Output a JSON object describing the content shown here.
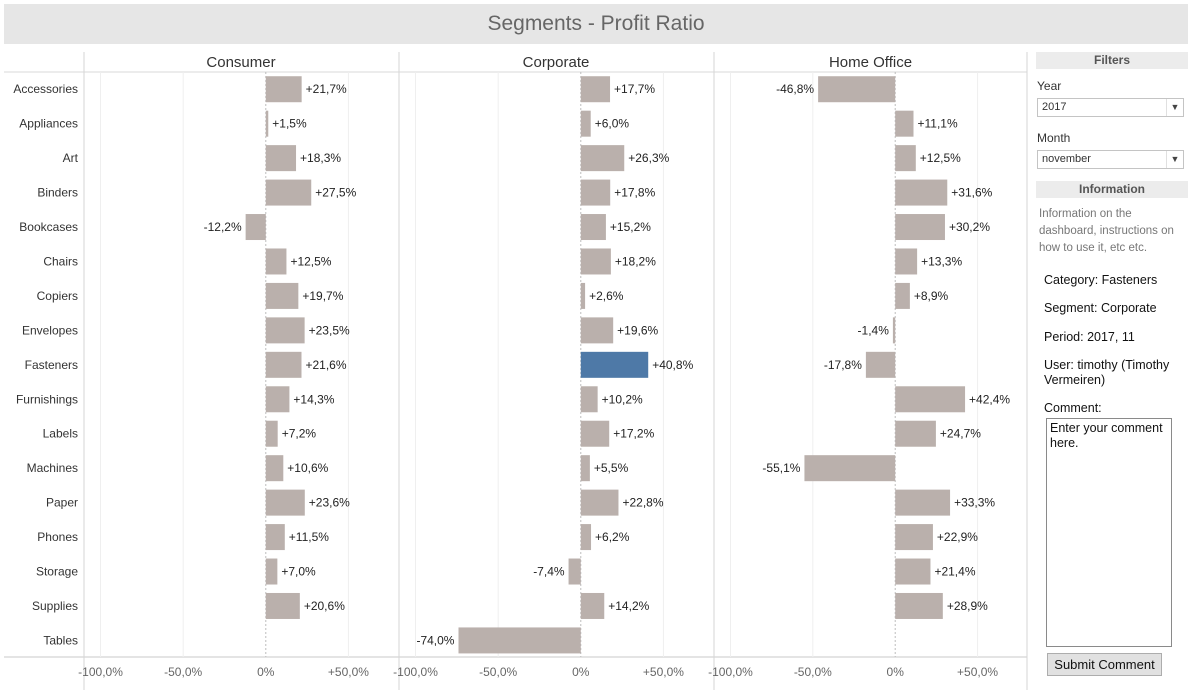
{
  "title": "Segments - Profit Ratio",
  "colors": {
    "bar": "#bab0ac",
    "highlight": "#4e79a7"
  },
  "chart_data": {
    "type": "bar",
    "orientation": "horizontal",
    "categories": [
      "Accessories",
      "Appliances",
      "Art",
      "Binders",
      "Bookcases",
      "Chairs",
      "Copiers",
      "Envelopes",
      "Fasteners",
      "Furnishings",
      "Labels",
      "Machines",
      "Paper",
      "Phones",
      "Storage",
      "Supplies",
      "Tables"
    ],
    "series": [
      {
        "name": "Consumer",
        "values": [
          21.7,
          1.5,
          18.3,
          27.5,
          -12.2,
          12.5,
          19.7,
          23.5,
          21.6,
          14.3,
          7.2,
          10.6,
          23.6,
          11.5,
          7.0,
          20.6,
          null
        ],
        "labels": [
          "+21,7%",
          "+1,5%",
          "+18,3%",
          "+27,5%",
          "-12,2%",
          "+12,5%",
          "+19,7%",
          "+23,5%",
          "+21,6%",
          "+14,3%",
          "+7,2%",
          "+10,6%",
          "+23,6%",
          "+11,5%",
          "+7,0%",
          "+20,6%",
          ""
        ]
      },
      {
        "name": "Corporate",
        "values": [
          17.7,
          6.0,
          26.3,
          17.8,
          15.2,
          18.2,
          2.6,
          19.6,
          40.8,
          10.2,
          17.2,
          5.5,
          22.8,
          6.2,
          -7.4,
          14.2,
          -74.0
        ],
        "labels": [
          "+17,7%",
          "+6,0%",
          "+26,3%",
          "+17,8%",
          "+15,2%",
          "+18,2%",
          "+2,6%",
          "+19,6%",
          "+40,8%",
          "+10,2%",
          "+17,2%",
          "+5,5%",
          "+22,8%",
          "+6,2%",
          "-7,4%",
          "+14,2%",
          "-74,0%"
        ]
      },
      {
        "name": "Home Office",
        "values": [
          -46.8,
          11.1,
          12.5,
          31.6,
          30.2,
          13.3,
          8.9,
          -1.4,
          -17.8,
          42.4,
          24.7,
          -55.1,
          33.3,
          22.9,
          21.4,
          28.9,
          null
        ],
        "labels": [
          "-46,8%",
          "+11,1%",
          "+12,5%",
          "+31,6%",
          "+30,2%",
          "+13,3%",
          "+8,9%",
          "-1,4%",
          "-17,8%",
          "+42,4%",
          "+24,7%",
          "-55,1%",
          "+33,3%",
          "+22,9%",
          "+21,4%",
          "+28,9%",
          ""
        ]
      }
    ],
    "highlight": {
      "series": "Corporate",
      "category": "Fasteners"
    },
    "x_ticks": [
      -100,
      -50,
      0,
      50
    ],
    "x_tick_labels": [
      "-100,0%",
      "-50,0%",
      "0%",
      "+50,0%"
    ],
    "xlim": [
      -110,
      80
    ],
    "grid": true
  },
  "sidebar": {
    "filters_header": "Filters",
    "year_label": "Year",
    "year_value": "2017",
    "month_label": "Month",
    "month_value": "november",
    "info_header": "Information",
    "info_text": "Information on the dashboard, instructions on how to use it, etc etc.",
    "category_line": "Category: Fasteners",
    "segment_line": "Segment: Corporate",
    "period_line": "Period: 2017, 11",
    "user_line": "User: timothy (Timothy Vermeiren)",
    "comment_label": "Comment:",
    "comment_value": "Enter your comment here.",
    "submit_label": "Submit Comment"
  }
}
